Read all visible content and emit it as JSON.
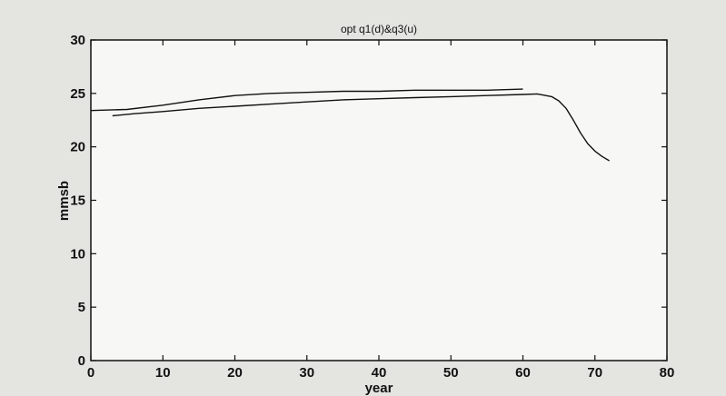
{
  "chart_data": {
    "type": "line",
    "title": "opt q1(d)&q3(u)",
    "xlabel": "year",
    "ylabel": "mmsb",
    "xlim": [
      0,
      80
    ],
    "ylim": [
      0,
      30
    ],
    "xticks": [
      0,
      10,
      20,
      30,
      40,
      50,
      60,
      70,
      80
    ],
    "yticks": [
      0,
      5,
      10,
      15,
      20,
      25,
      30
    ],
    "grid": false,
    "legend": "none",
    "series": [
      {
        "x": [
          0,
          5,
          10,
          15,
          20,
          25,
          30,
          35,
          40,
          45,
          50,
          55,
          60
        ],
        "y": [
          23.4,
          23.5,
          23.9,
          24.4,
          24.8,
          25.0,
          25.1,
          25.2,
          25.2,
          25.3,
          25.3,
          25.3,
          25.4
        ]
      },
      {
        "x": [
          3,
          6,
          10,
          15,
          20,
          25,
          30,
          35,
          40,
          45,
          50,
          55,
          60,
          62,
          64,
          65,
          66,
          67,
          68,
          69,
          70,
          71,
          72
        ],
        "y": [
          22.9,
          23.1,
          23.3,
          23.6,
          23.8,
          24.0,
          24.2,
          24.4,
          24.5,
          24.6,
          24.7,
          24.8,
          24.9,
          24.95,
          24.7,
          24.3,
          23.6,
          22.5,
          21.3,
          20.3,
          19.6,
          19.1,
          18.7
        ]
      }
    ],
    "colors": {
      "line": "#111111",
      "axis": "#111111",
      "plot_bg": "#f7f7f5"
    }
  }
}
